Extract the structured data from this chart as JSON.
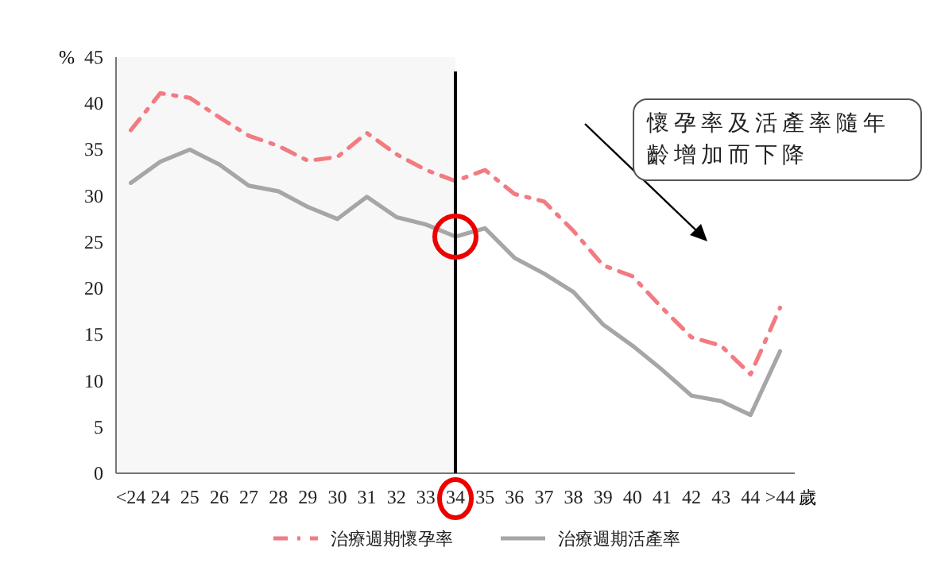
{
  "chart_data": {
    "type": "line",
    "ylabel": "%",
    "xlabel": "歲",
    "categories": [
      "<24",
      "24",
      "25",
      "26",
      "27",
      "28",
      "29",
      "30",
      "31",
      "32",
      "33",
      "34",
      "35",
      "36",
      "37",
      "38",
      "39",
      "40",
      "41",
      "42",
      "43",
      "44",
      ">44"
    ],
    "series": [
      {
        "name": "治療週期懷孕率",
        "color": "#f27b82",
        "line_style": "dashdot",
        "values": [
          37.1,
          41.1,
          40.6,
          38.5,
          36.5,
          35.4,
          33.8,
          34.2,
          36.8,
          34.5,
          32.8,
          31.6,
          32.8,
          30.2,
          29.4,
          26.2,
          22.5,
          21.3,
          17.9,
          14.7,
          13.8,
          10.7,
          17.9
        ]
      },
      {
        "name": "治療週期活產率",
        "color": "#a6a6a6",
        "line_style": "solid",
        "values": [
          31.4,
          33.7,
          35.0,
          33.4,
          31.1,
          30.5,
          28.8,
          27.5,
          29.9,
          27.7,
          26.9,
          25.6,
          26.5,
          23.3,
          21.6,
          19.6,
          16.1,
          13.8,
          11.2,
          8.4,
          7.8,
          6.3,
          13.2
        ]
      }
    ],
    "ylim": [
      0,
      45
    ],
    "yticks": [
      0,
      5,
      10,
      15,
      20,
      25,
      30,
      35,
      40,
      45
    ],
    "bands": [
      {
        "axis": "x",
        "from": "<24",
        "to": "34",
        "color": "#f7f7f7"
      }
    ],
    "ref_lines": [
      {
        "axis": "x",
        "value": "34",
        "color": "#000000"
      }
    ],
    "annotations": [
      "懷孕率及活產率隨年齡增加而下降"
    ],
    "legend": "bottom",
    "grid": false,
    "marker": "none"
  }
}
